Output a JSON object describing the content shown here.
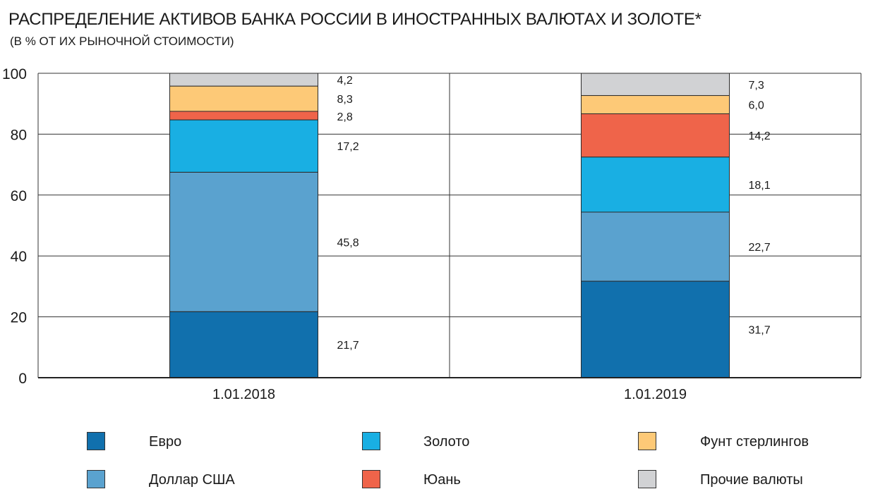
{
  "header": {
    "title": "РАСПРЕДЕЛЕНИЕ АКТИВОВ БАНКА РОССИИ В ИНОСТРАННЫХ ВАЛЮТАХ И ЗОЛОТЕ*",
    "subtitle": "(В % ОТ ИХ РЫНОЧНОЙ СТОИМОСТИ)"
  },
  "chart_data": {
    "type": "bar",
    "stacked": true,
    "title": "РАСПРЕДЕЛЕНИЕ АКТИВОВ БАНКА РОССИИ В ИНОСТРАННЫХ ВАЛЮТАХ И ЗОЛОТЕ*",
    "subtitle": "(В % ОТ ИХ РЫНОЧНОЙ СТОИМОСТИ)",
    "xlabel": "",
    "ylabel": "",
    "ylim": [
      0,
      100
    ],
    "yticks": [
      0,
      20,
      40,
      60,
      80,
      100
    ],
    "grid": true,
    "legend_position": "bottom",
    "categories": [
      "1.01.2018",
      "1.01.2019"
    ],
    "series": [
      {
        "name": "Евро",
        "color": "#1170ad",
        "values": [
          21.7,
          31.7
        ],
        "labels": [
          "21,7",
          "31,7"
        ]
      },
      {
        "name": "Доллар США",
        "color": "#5aa2cf",
        "values": [
          45.8,
          22.7
        ],
        "labels": [
          "45,8",
          "22,7"
        ]
      },
      {
        "name": "Золото",
        "color": "#19afe3",
        "values": [
          17.2,
          18.1
        ],
        "labels": [
          "17,2",
          "18,1"
        ]
      },
      {
        "name": "Юань",
        "color": "#ef644a",
        "values": [
          2.8,
          14.2
        ],
        "labels": [
          "2,8",
          "14,2"
        ]
      },
      {
        "name": "Фунт стерлингов",
        "color": "#fdc977",
        "values": [
          8.3,
          6.0
        ],
        "labels": [
          "8,3",
          "6,0"
        ]
      },
      {
        "name": "Прочие валюты",
        "color": "#d1d2d4",
        "values": [
          4.2,
          7.3
        ],
        "labels": [
          "4,2",
          "7,3"
        ]
      }
    ]
  },
  "legend": {
    "items": [
      {
        "label": "Евро",
        "color": "#1170ad"
      },
      {
        "label": "Доллар США",
        "color": "#5aa2cf"
      },
      {
        "label": "Золото",
        "color": "#19afe3"
      },
      {
        "label": "Юань",
        "color": "#ef644a"
      },
      {
        "label": "Фунт стерлингов",
        "color": "#fdc977"
      },
      {
        "label": "Прочие валюты",
        "color": "#d1d2d4"
      }
    ]
  }
}
